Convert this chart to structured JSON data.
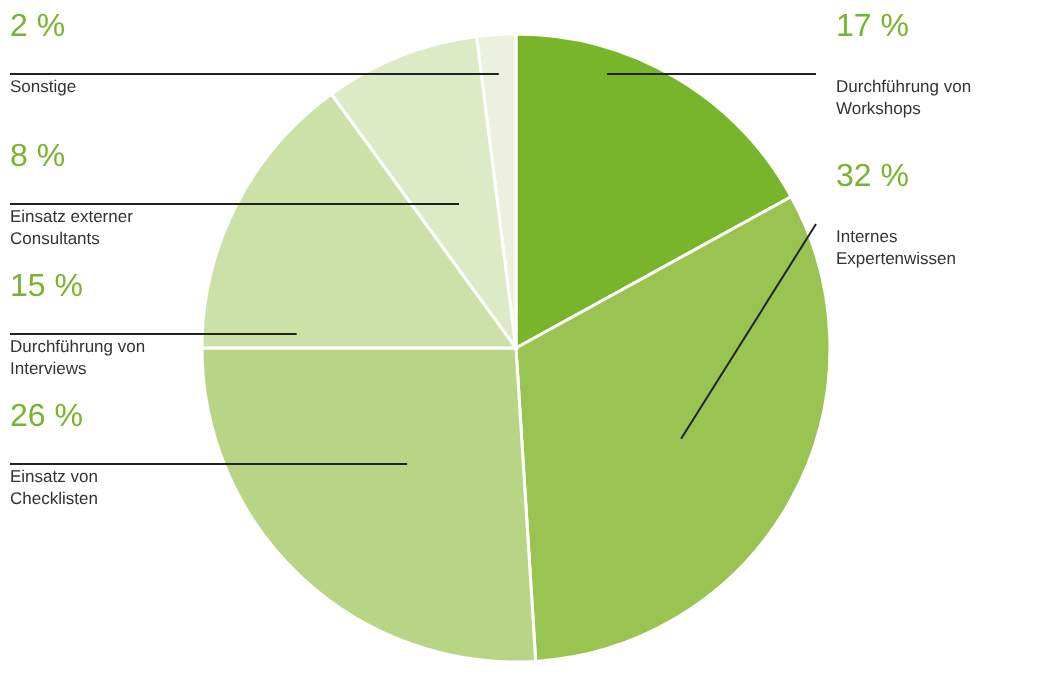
{
  "chart_data": {
    "type": "pie",
    "categories": [
      "Durchführung von Workshops",
      "Internes Expertenwissen",
      "Einsatz von Checklisten",
      "Durchführung von Interviews",
      "Einsatz externer Consultants",
      "Sonstige"
    ],
    "values": [
      17,
      32,
      26,
      15,
      8,
      2
    ],
    "value_labels": [
      "17 %",
      "32 %",
      "26 %",
      "15 %",
      "8 %",
      "2 %"
    ],
    "colors": [
      "#78b52a",
      "#99c451",
      "#b7d584",
      "#cbe1a8",
      "#dcebc6",
      "#eaf2df"
    ]
  }
}
